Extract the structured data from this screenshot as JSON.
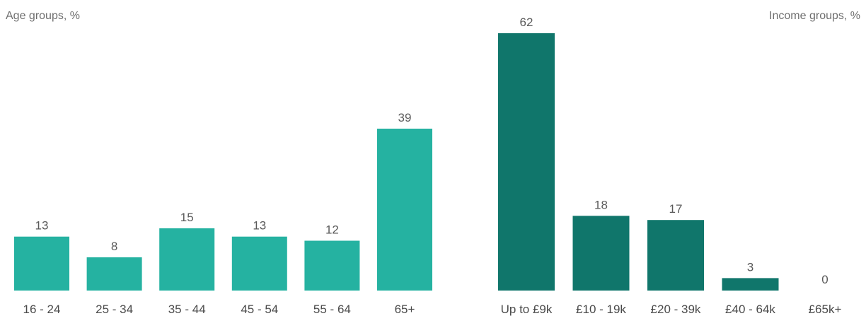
{
  "chart_data": [
    {
      "type": "bar",
      "title": "Age groups, %",
      "categories": [
        "16 - 24",
        "25 - 34",
        "35 - 44",
        "45 - 54",
        "55 - 64",
        "65+"
      ],
      "values": [
        13,
        8,
        15,
        13,
        12,
        39
      ],
      "ylim": [
        0,
        62
      ],
      "color": "#25b2a1",
      "grid": false
    },
    {
      "type": "bar",
      "title": "Income groups, %",
      "categories": [
        "Up to £9k",
        "£10 - 19k",
        "£20 - 39k",
        "£40 - 64k",
        "£65k+"
      ],
      "values": [
        62,
        18,
        17,
        3,
        0
      ],
      "ylim": [
        0,
        62
      ],
      "color": "#10766b",
      "grid": false
    }
  ]
}
